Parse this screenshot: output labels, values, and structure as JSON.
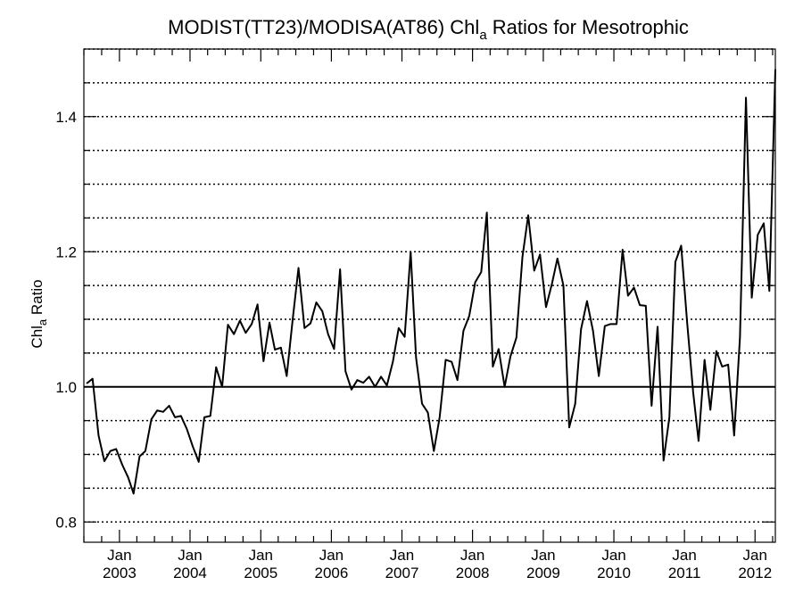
{
  "chart_data": {
    "type": "line",
    "title": {
      "prefix": "MODIST(TT23)/MODISA(AT86)  Chl",
      "sub": "a",
      "suffix": " Ratios for Mesotrophic"
    },
    "ylabel": {
      "prefix": "Chl",
      "sub": "a",
      "suffix": " Ratio"
    },
    "xlim": [
      "2002-07-01",
      "2012-04-15"
    ],
    "ylim": [
      0.77,
      1.5
    ],
    "y_ticks": [
      {
        "value": 0.8,
        "label": "0.8"
      },
      {
        "value": 1.0,
        "label": "1.0"
      },
      {
        "value": 1.2,
        "label": "1.2"
      },
      {
        "value": 1.4,
        "label": "1.4"
      }
    ],
    "y_minor_ticks": [
      0.85,
      0.9,
      0.95,
      1.05,
      1.1,
      1.15,
      1.25,
      1.3,
      1.35,
      1.45
    ],
    "grid": {
      "y_every": 0.05,
      "style": "dotted"
    },
    "reference_line": 1.0,
    "x_ticks": [
      {
        "date": "2003-01-01",
        "month": "Jan",
        "year": "2003"
      },
      {
        "date": "2004-01-01",
        "month": "Jan",
        "year": "2004"
      },
      {
        "date": "2005-01-01",
        "month": "Jan",
        "year": "2005"
      },
      {
        "date": "2006-01-01",
        "month": "Jan",
        "year": "2006"
      },
      {
        "date": "2007-01-01",
        "month": "Jan",
        "year": "2007"
      },
      {
        "date": "2008-01-01",
        "month": "Jan",
        "year": "2008"
      },
      {
        "date": "2009-01-01",
        "month": "Jan",
        "year": "2009"
      },
      {
        "date": "2010-01-01",
        "month": "Jan",
        "year": "2010"
      },
      {
        "date": "2011-01-01",
        "month": "Jan",
        "year": "2011"
      },
      {
        "date": "2012-01-01",
        "month": "Jan",
        "year": "2012"
      }
    ],
    "series": [
      {
        "color": "#000000",
        "x": [
          "2002-07",
          "2002-08",
          "2002-09",
          "2002-10",
          "2002-11",
          "2002-12",
          "2003-01",
          "2003-02",
          "2003-03",
          "2003-04",
          "2003-05",
          "2003-06",
          "2003-07",
          "2003-08",
          "2003-09",
          "2003-10",
          "2003-11",
          "2003-12",
          "2004-01",
          "2004-02",
          "2004-03",
          "2004-04",
          "2004-05",
          "2004-06",
          "2004-07",
          "2004-08",
          "2004-09",
          "2004-10",
          "2004-11",
          "2004-12",
          "2005-01",
          "2005-02",
          "2005-03",
          "2005-04",
          "2005-05",
          "2005-06",
          "2005-07",
          "2005-08",
          "2005-09",
          "2005-10",
          "2005-11",
          "2005-12",
          "2006-01",
          "2006-02",
          "2006-03",
          "2006-04",
          "2006-05",
          "2006-06",
          "2006-07",
          "2006-08",
          "2006-09",
          "2006-10",
          "2006-11",
          "2006-12",
          "2007-01",
          "2007-02",
          "2007-03",
          "2007-04",
          "2007-05",
          "2007-06",
          "2007-07",
          "2007-08",
          "2007-09",
          "2007-10",
          "2007-11",
          "2007-12",
          "2008-01",
          "2008-02",
          "2008-03",
          "2008-04",
          "2008-05",
          "2008-06",
          "2008-07",
          "2008-08",
          "2008-09",
          "2008-10",
          "2008-11",
          "2008-12",
          "2009-01",
          "2009-02",
          "2009-03",
          "2009-04",
          "2009-05",
          "2009-06",
          "2009-07",
          "2009-08",
          "2009-09",
          "2009-10",
          "2009-11",
          "2009-12",
          "2010-01",
          "2010-02",
          "2010-03",
          "2010-04",
          "2010-05",
          "2010-06",
          "2010-07",
          "2010-08",
          "2010-09",
          "2010-10",
          "2010-11",
          "2010-12",
          "2011-01",
          "2011-02",
          "2011-03",
          "2011-04",
          "2011-05",
          "2011-06",
          "2011-07",
          "2011-08",
          "2011-09",
          "2011-10",
          "2011-11",
          "2011-12",
          "2012-01",
          "2012-02",
          "2012-03",
          "2012-04"
        ],
        "values": [
          1.005,
          1.012,
          0.928,
          0.89,
          0.905,
          0.908,
          0.885,
          0.866,
          0.842,
          0.897,
          0.905,
          0.952,
          0.965,
          0.963,
          0.972,
          0.955,
          0.957,
          0.938,
          0.912,
          0.889,
          0.955,
          0.957,
          1.029,
          1.0,
          1.092,
          1.078,
          1.098,
          1.08,
          1.093,
          1.122,
          1.038,
          1.095,
          1.055,
          1.058,
          1.016,
          1.1,
          1.176,
          1.087,
          1.094,
          1.125,
          1.112,
          1.078,
          1.056,
          1.174,
          1.023,
          0.996,
          1.01,
          1.006,
          1.015,
          1.0,
          1.015,
          1.002,
          1.037,
          1.087,
          1.074,
          1.2,
          1.043,
          0.975,
          0.962,
          0.905,
          0.955,
          1.04,
          1.037,
          1.01,
          1.083,
          1.105,
          1.155,
          1.17,
          1.258,
          1.03,
          1.056,
          1.0,
          1.045,
          1.073,
          1.192,
          1.254,
          1.172,
          1.196,
          1.118,
          1.153,
          1.19,
          1.15,
          0.94,
          0.975,
          1.085,
          1.127,
          1.083,
          1.016,
          1.09,
          1.093,
          1.093,
          1.203,
          1.135,
          1.147,
          1.121,
          1.12,
          0.972,
          1.089,
          0.891,
          0.955,
          1.185,
          1.209,
          1.095,
          0.992,
          0.92,
          1.04,
          0.966,
          1.053,
          1.03,
          1.033,
          0.928,
          1.073,
          1.428,
          1.132,
          1.225,
          1.242,
          1.142,
          1.47
        ]
      }
    ]
  }
}
